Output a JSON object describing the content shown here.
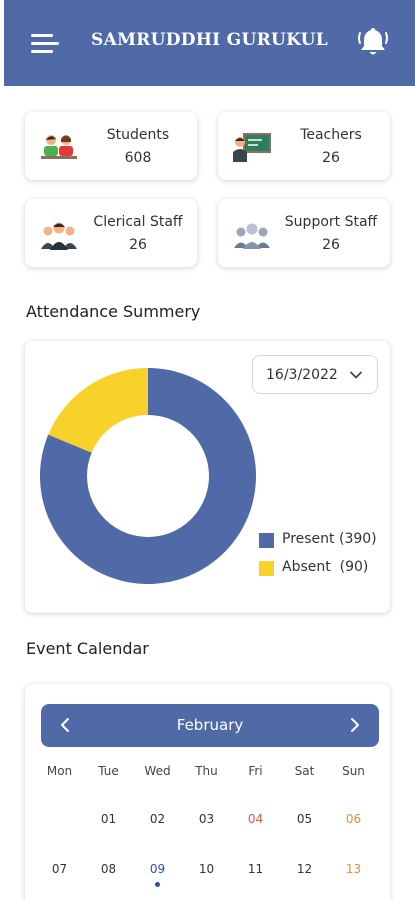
{
  "header": {
    "title": "SAMRUDDHI GURUKUL",
    "menu_icon": "hamburger-menu-icon",
    "bell_icon": "bell-icon",
    "color": "#4f6aa6"
  },
  "stats": [
    {
      "label": "Students",
      "value": "608",
      "icon": "students-icon"
    },
    {
      "label": "Teachers",
      "value": "26",
      "icon": "teacher-icon"
    },
    {
      "label": "Clerical Staff",
      "value": "26",
      "icon": "clerical-staff-icon"
    },
    {
      "label": "Support Staff",
      "value": "26",
      "icon": "support-staff-icon"
    }
  ],
  "attendance": {
    "title": "Attendance Summery",
    "date": "16/3/2022",
    "legend": [
      {
        "label": "Present (390)",
        "color": "#4f6aa6"
      },
      {
        "label": "Absent  (90)",
        "color": "#f6d22a"
      }
    ]
  },
  "chart_data": {
    "type": "pie",
    "categories": [
      "Present",
      "Absent"
    ],
    "values": [
      390,
      90
    ],
    "colors": [
      "#4f6aa6",
      "#f6d22a"
    ],
    "title": "",
    "donut": true
  },
  "calendar": {
    "title": "Event Calendar",
    "month": "February",
    "prev_icon": "chevron-left-icon",
    "next_icon": "chevron-right-icon",
    "weekdays": [
      "Mon",
      "Tue",
      "Wed",
      "Thu",
      "Fri",
      "Sat",
      "Sun"
    ],
    "weeks": [
      [
        "",
        "01",
        "02",
        "03",
        "04",
        "05",
        "06"
      ],
      [
        "07",
        "08",
        "09",
        "10",
        "11",
        "12",
        "13"
      ]
    ],
    "highlight": {
      "04": "#e0564d",
      "06": "#f0893a",
      "09": "#2f4fa8",
      "13": "#f0893a"
    },
    "event_marker_day": "09"
  }
}
